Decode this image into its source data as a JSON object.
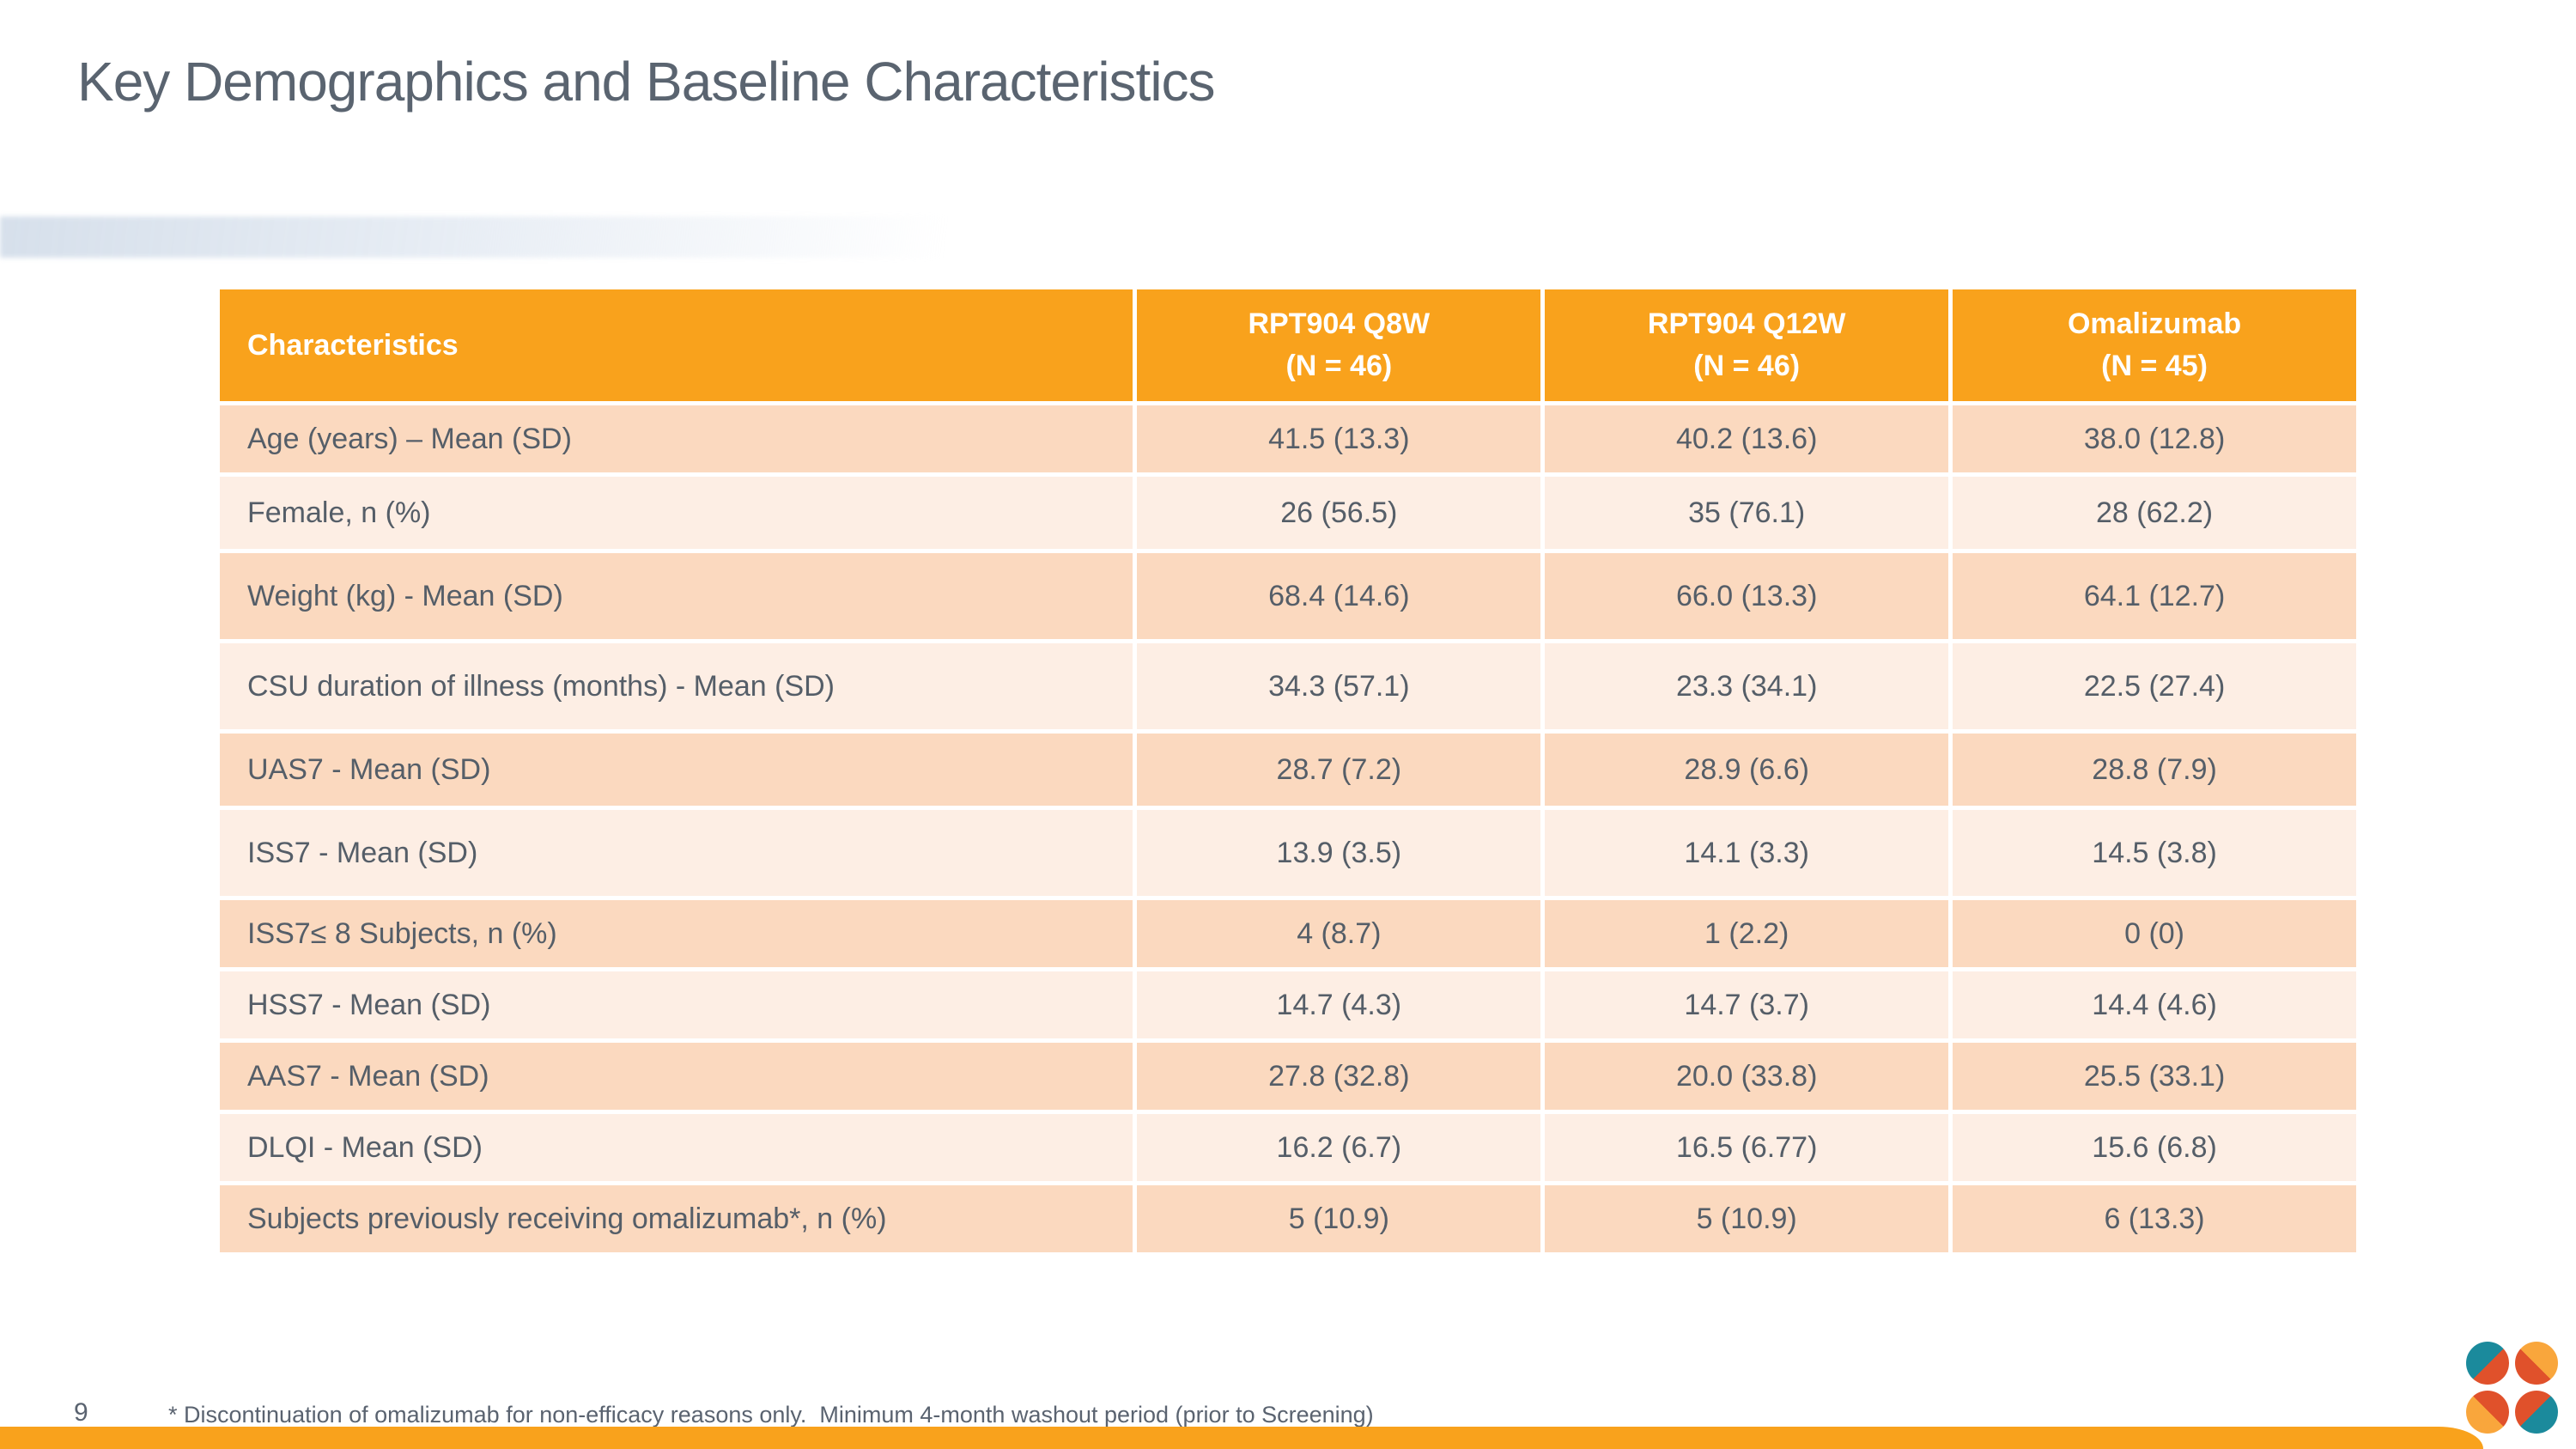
{
  "slide": {
    "title": "Key Demographics and Baseline Characteristics",
    "page_number": "9",
    "footnote": "* Discontinuation of omalizumab for non-efficacy reasons only.  Minimum 4-month washout period (prior to Screening)"
  },
  "table": {
    "header": {
      "characteristics": "Characteristics",
      "groups": [
        {
          "name": "RPT904 Q8W",
          "n": "(N = 46)"
        },
        {
          "name": "RPT904 Q12W",
          "n": "(N = 46)"
        },
        {
          "name": "Omalizumab",
          "n": "(N = 45)"
        }
      ]
    },
    "rows": [
      {
        "label": "Age (years) – Mean (SD)",
        "values": [
          "41.5 (13.3)",
          "40.2 (13.6)",
          "38.0 (12.8)"
        ]
      },
      {
        "label": "Female, n (%)",
        "values": [
          "26 (56.5)",
          "35 (76.1)",
          "28 (62.2)"
        ]
      },
      {
        "label": "Weight (kg) - Mean (SD)",
        "values": [
          "68.4 (14.6)",
          "66.0 (13.3)",
          "64.1 (12.7)"
        ]
      },
      {
        "label": "CSU duration of illness (months) - Mean (SD)",
        "values": [
          "34.3 (57.1)",
          "23.3 (34.1)",
          "22.5 (27.4)"
        ]
      },
      {
        "label": "UAS7 - Mean (SD)",
        "values": [
          "28.7 (7.2)",
          "28.9 (6.6)",
          "28.8 (7.9)"
        ]
      },
      {
        "label": "ISS7 - Mean (SD)",
        "values": [
          "13.9 (3.5)",
          "14.1 (3.3)",
          "14.5 (3.8)"
        ]
      },
      {
        "label": "ISS7≤ 8 Subjects, n (%)",
        "values": [
          "4 (8.7)",
          "1 (2.2)",
          "0 (0)"
        ]
      },
      {
        "label": "HSS7 - Mean (SD)",
        "values": [
          "14.7 (4.3)",
          "14.7 (3.7)",
          "14.4 (4.6)"
        ]
      },
      {
        "label": "AAS7 - Mean (SD)",
        "values": [
          "27.8 (32.8)",
          "20.0 (33.8)",
          "25.5 (33.1)"
        ]
      },
      {
        "label": "DLQI - Mean (SD)",
        "values": [
          "16.2 (6.7)",
          "16.5 (6.77)",
          "15.6 (6.8)"
        ]
      },
      {
        "label": "Subjects previously receiving omalizumab*, n (%)",
        "values": [
          "5 (10.9)",
          "5 (10.9)",
          "6 (13.3)"
        ]
      }
    ]
  },
  "colors": {
    "accent_orange": "#F9A21C",
    "row_dark": "#FBD9BF",
    "row_light": "#FDEEE4",
    "header_text": "#FFFFFF",
    "body_text": "#555E68",
    "title_text": "#5A6470",
    "logo_teal": "#1B8A9C",
    "logo_red_orange": "#E0512B",
    "logo_amber": "#F9A63C"
  }
}
